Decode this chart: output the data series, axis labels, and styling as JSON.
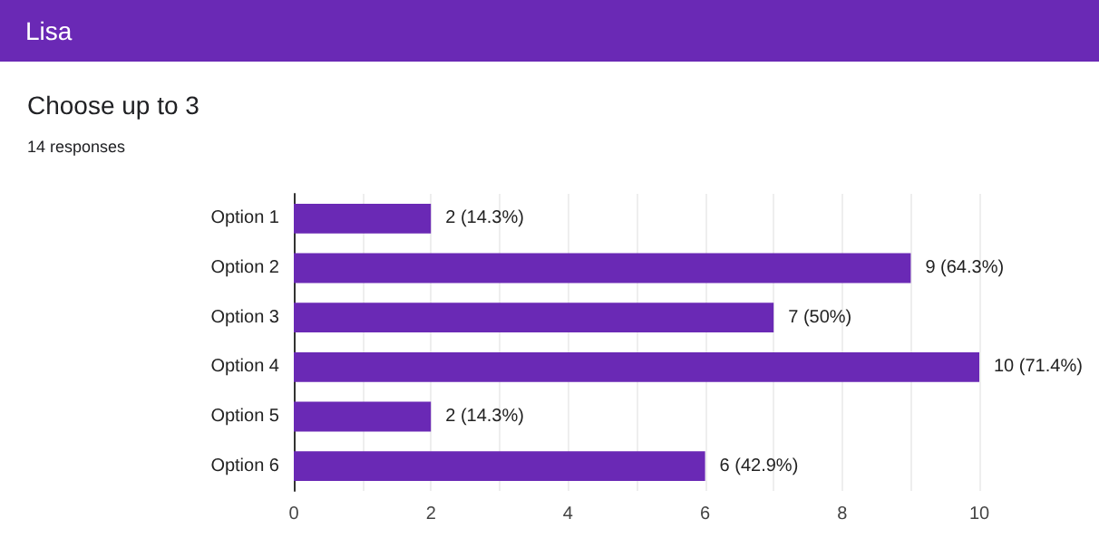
{
  "chart_data": {
    "type": "bar",
    "orientation": "horizontal",
    "title": "Lisa",
    "subtitle": "Choose up to 3",
    "annotations": [
      "14 responses"
    ],
    "categories": [
      "Option 1",
      "Option 2",
      "Option 3",
      "Option 4",
      "Option 5",
      "Option 6"
    ],
    "values": [
      2,
      9,
      7,
      10,
      2,
      6
    ],
    "value_labels": [
      "2 (14.3%)",
      "9 (64.3%)",
      "7 (50%)",
      "10 (71.4%)",
      "2 (14.3%)",
      "6 (42.9%)"
    ],
    "color": "#6a29b5",
    "xlim": [
      0,
      10
    ],
    "xticks": [
      0,
      {
        "value": 1,
        "label": null
      },
      2,
      {
        "value": 3,
        "label": null
      },
      4,
      {
        "value": 5,
        "label": null
      },
      6,
      {
        "value": 7,
        "label": null
      },
      8,
      {
        "value": 9,
        "label": null
      },
      10
    ],
    "grid": "x"
  }
}
